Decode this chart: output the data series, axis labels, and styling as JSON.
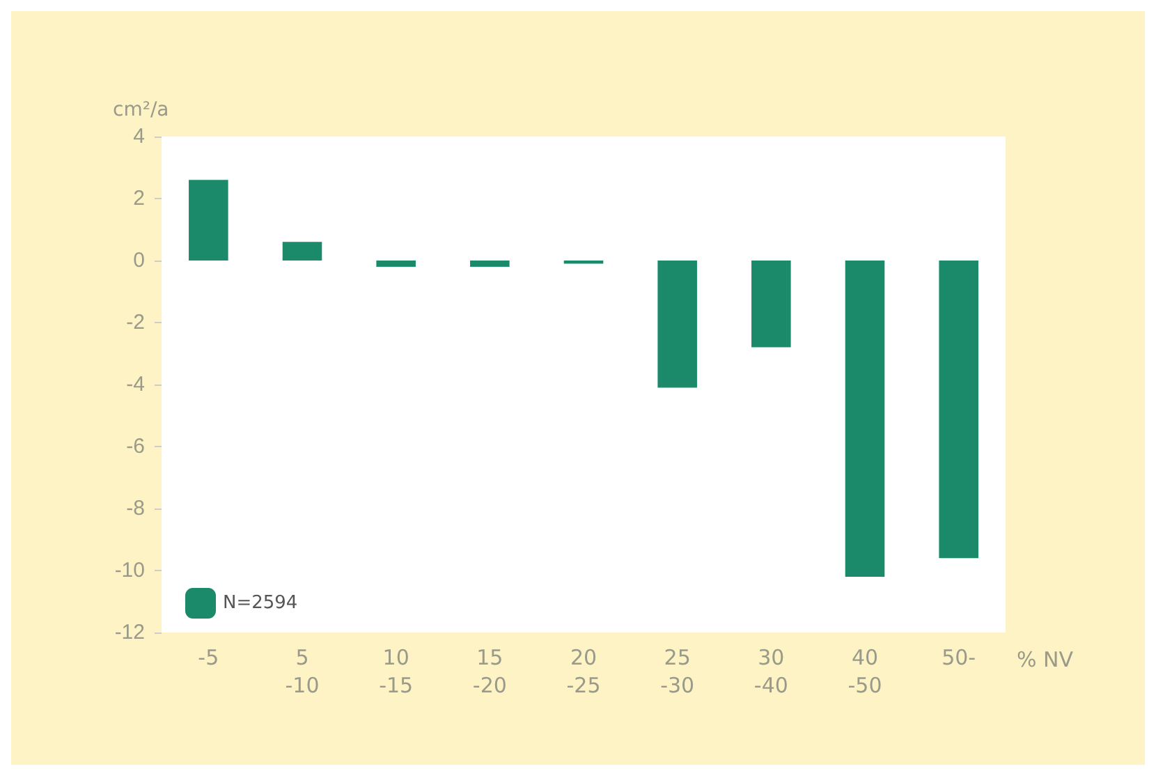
{
  "chart_data": {
    "type": "bar",
    "ylabel": "cm²/a",
    "xlabel": "% NV",
    "categories": [
      "-5",
      "5\n-10",
      "10\n-15",
      "15\n-20",
      "20\n-25",
      "25\n-30",
      "30\n-40",
      "40\n-50",
      "50-"
    ],
    "series": [
      {
        "name": "N=2594",
        "color": "#1a8a6a",
        "values": [
          2.6,
          0.6,
          -0.2,
          -0.2,
          -0.1,
          -4.1,
          -2.8,
          -10.2,
          -9.6
        ]
      }
    ],
    "ylim": [
      -12,
      4
    ],
    "yticks": [
      -12,
      -10,
      -8,
      -6,
      -4,
      -2,
      0,
      2,
      4
    ],
    "grid": false,
    "legend": "bottom left"
  }
}
